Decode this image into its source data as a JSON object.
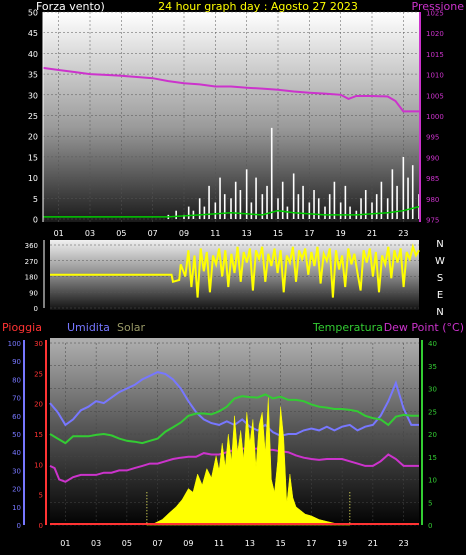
{
  "colors": {
    "wind": "#ffffff",
    "gust": "#00cc00",
    "pressure": "#cc33cc",
    "direction": "#ffff00",
    "rain": "#ff3333",
    "humidity": "#7777ff",
    "solar": "#ffff00",
    "temperature": "#33cc33",
    "dewpoint": "#cc33cc",
    "title": "#ffff00",
    "axis_text": "#ffffff"
  },
  "chart_data": [
    {
      "type": "line",
      "panel": "wind_pressure",
      "title": "24 hour graph day : Agosto 27 2023",
      "left_label": "Forza vento)",
      "right_label": "Pressione",
      "x_ticks": [
        "01",
        "03",
        "05",
        "07",
        "09",
        "11",
        "13",
        "15",
        "17",
        "19",
        "21",
        "23"
      ],
      "y_left_ticks": [
        0,
        5,
        10,
        15,
        20,
        25,
        30,
        35,
        40,
        45,
        50
      ],
      "y_right_ticks": [
        975,
        980,
        985,
        990,
        995,
        1000,
        1005,
        1010,
        1015,
        1020,
        1025
      ],
      "ylim_left": [
        0,
        50
      ],
      "ylim_right": [
        975,
        1025
      ],
      "grid": true,
      "series": [
        {
          "key": "pressure",
          "axis": "right",
          "x": [
            0,
            1,
            2,
            3,
            4,
            5,
            6,
            7,
            8,
            9,
            10,
            11,
            12,
            13,
            14,
            15,
            16,
            17,
            18,
            19,
            19.5,
            20,
            21,
            22,
            22.5,
            23,
            24
          ],
          "values": [
            1011.5,
            1011,
            1010.5,
            1010,
            1009.8,
            1009.6,
            1009.3,
            1009,
            1008.3,
            1007.8,
            1007.5,
            1007,
            1007,
            1006.7,
            1006.5,
            1006.2,
            1005.8,
            1005.5,
            1005.3,
            1005,
            1004,
            1004.7,
            1004.7,
            1004.6,
            1003.5,
            1001,
            1001
          ]
        },
        {
          "key": "wind",
          "axis": "left",
          "x": [
            8.0,
            8.5,
            9.0,
            9.3,
            9.6,
            10.0,
            10.3,
            10.6,
            11.0,
            11.3,
            11.6,
            12.0,
            12.3,
            12.6,
            13.0,
            13.3,
            13.6,
            14.0,
            14.3,
            14.6,
            15.0,
            15.3,
            15.6,
            16.0,
            16.3,
            16.6,
            17.0,
            17.3,
            17.6,
            18.0,
            18.3,
            18.6,
            19.0,
            19.3,
            19.6,
            20.0,
            20.3,
            20.6,
            21.0,
            21.3,
            21.6,
            22.0,
            22.3,
            22.6,
            23.0,
            23.3,
            23.6,
            24.0
          ],
          "values": [
            1,
            2,
            1,
            3,
            2,
            5,
            3,
            8,
            4,
            10,
            6,
            5,
            9,
            7,
            12,
            4,
            10,
            6,
            8,
            22,
            5,
            9,
            3,
            11,
            6,
            8,
            4,
            7,
            5,
            3,
            6,
            9,
            4,
            8,
            3,
            2,
            5,
            7,
            4,
            6,
            9,
            5,
            12,
            8,
            15,
            10,
            13,
            6
          ]
        },
        {
          "key": "gust",
          "axis": "left",
          "x": [
            0,
            8,
            10,
            12,
            14,
            15,
            16,
            18,
            20,
            22,
            23,
            24
          ],
          "values": [
            0.5,
            0.5,
            1,
            1.5,
            1,
            2,
            1.5,
            1,
            1,
            1.5,
            2,
            3
          ]
        }
      ]
    },
    {
      "type": "line",
      "panel": "wind_direction",
      "y_ticks": [
        0,
        90,
        180,
        270,
        360
      ],
      "ylim": [
        0,
        360
      ],
      "right_labels": [
        "N",
        "W",
        "S",
        "E",
        "N"
      ],
      "grid": true,
      "series": [
        {
          "key": "direction",
          "x": [
            0,
            7.9,
            8.0,
            8.4,
            8.5,
            8.8,
            9.0,
            9.2,
            9.4,
            9.6,
            9.8,
            10.0,
            10.2,
            10.4,
            10.6,
            10.8,
            11.0,
            11.2,
            11.4,
            11.6,
            11.8,
            12.0,
            12.2,
            12.4,
            12.6,
            12.8,
            13.0,
            13.2,
            13.4,
            13.6,
            13.8,
            14.0,
            14.2,
            14.4,
            14.6,
            14.8,
            15.0,
            15.2,
            15.4,
            15.6,
            15.8,
            16.0,
            16.2,
            16.4,
            16.6,
            16.8,
            17.0,
            17.2,
            17.4,
            17.6,
            17.8,
            18.0,
            18.2,
            18.4,
            18.6,
            18.8,
            19.0,
            19.2,
            19.4,
            19.6,
            19.8,
            20.0,
            20.2,
            20.4,
            20.6,
            20.8,
            21.0,
            21.2,
            21.4,
            21.6,
            21.8,
            22.0,
            22.2,
            22.4,
            22.6,
            22.8,
            23.0,
            23.2,
            23.4,
            23.6,
            23.8,
            24.0
          ],
          "values": [
            190,
            190,
            150,
            160,
            250,
            180,
            330,
            120,
            300,
            60,
            340,
            210,
            320,
            90,
            300,
            250,
            340,
            180,
            330,
            120,
            310,
            200,
            350,
            150,
            320,
            260,
            340,
            100,
            330,
            280,
            350,
            150,
            310,
            240,
            340,
            200,
            330,
            90,
            300,
            260,
            350,
            150,
            330,
            280,
            340,
            190,
            320,
            240,
            350,
            140,
            310,
            270,
            340,
            60,
            330,
            220,
            300,
            120,
            340,
            250,
            310,
            200,
            100,
            330,
            260,
            340,
            180,
            320,
            90,
            300,
            250,
            350,
            170,
            330,
            260,
            340,
            120,
            320,
            280,
            350,
            300,
            330
          ]
        }
      ]
    },
    {
      "type": "area",
      "panel": "humidity_temperature",
      "labels": {
        "rain": "Pioggia",
        "humidity": "Umidita",
        "solar": "Solar",
        "temperature": "Temperatura",
        "dewpoint": "Dew Point (°C)"
      },
      "x_ticks": [
        "01",
        "03",
        "05",
        "07",
        "09",
        "11",
        "13",
        "15",
        "17",
        "19",
        "21",
        "23"
      ],
      "y_humidity_ticks": [
        0,
        10,
        20,
        30,
        40,
        50,
        60,
        70,
        80,
        90,
        100
      ],
      "y_rain_ticks": [
        0,
        5,
        10,
        15,
        20,
        25,
        30
      ],
      "y_temp_ticks": [
        0,
        5,
        10,
        15,
        20,
        25,
        30,
        35,
        40
      ],
      "ylim_humidity": [
        0,
        100
      ],
      "ylim_rain": [
        0,
        30
      ],
      "ylim_temp": [
        0,
        40
      ],
      "grid": true,
      "series": [
        {
          "key": "humidity",
          "axis": "humidity",
          "x": [
            0,
            0.5,
            1,
            1.5,
            2,
            2.5,
            3,
            3.5,
            4,
            4.5,
            5,
            5.5,
            6,
            6.5,
            7,
            7.5,
            8,
            8.5,
            9,
            9.5,
            10,
            10.5,
            11,
            11.5,
            12,
            12.5,
            13,
            13.5,
            14,
            14.5,
            15,
            15.5,
            16,
            16.5,
            17,
            17.5,
            18,
            18.5,
            19,
            19.5,
            20,
            20.5,
            21,
            21.5,
            22,
            22.5,
            23,
            23.5,
            24
          ],
          "values": [
            67,
            62,
            55,
            58,
            63,
            65,
            68,
            67,
            70,
            73,
            75,
            77,
            80,
            82,
            84,
            83,
            80,
            75,
            68,
            62,
            58,
            56,
            55,
            57,
            55,
            58,
            54,
            52,
            55,
            51,
            49,
            50,
            50,
            52,
            53,
            52,
            54,
            52,
            54,
            55,
            52,
            54,
            55,
            60,
            68,
            78,
            64,
            55,
            55
          ]
        },
        {
          "key": "temperature",
          "axis": "temp",
          "x": [
            0,
            0.5,
            1,
            1.5,
            2,
            2.5,
            3,
            3.5,
            4,
            4.5,
            5,
            5.5,
            6,
            6.5,
            7,
            7.5,
            8,
            8.5,
            9,
            9.5,
            10,
            10.5,
            11,
            11.5,
            12,
            12.5,
            13,
            13.5,
            14,
            14.5,
            15,
            15.5,
            16,
            16.5,
            17,
            17.5,
            18,
            18.5,
            19,
            19.5,
            20,
            20.5,
            21,
            21.5,
            22,
            22.5,
            23,
            23.5,
            24
          ],
          "values": [
            20,
            19,
            18,
            19.5,
            19.5,
            19.5,
            19.8,
            20,
            19.7,
            19,
            18.5,
            18.3,
            18,
            18.5,
            19,
            20.5,
            21.5,
            22.5,
            24,
            24.5,
            24.5,
            24.3,
            25,
            26,
            27.8,
            28.3,
            28.1,
            28,
            28.7,
            27.8,
            28.2,
            27.5,
            27.5,
            27.2,
            26.5,
            26,
            25.8,
            25.5,
            25.5,
            25.3,
            25,
            24,
            23.5,
            23.2,
            22,
            23.8,
            24.2,
            24,
            24
          ]
        },
        {
          "key": "dewpoint",
          "axis": "temp",
          "x": [
            0,
            0.3,
            0.6,
            1,
            1.5,
            2,
            2.5,
            3,
            3.5,
            4,
            4.5,
            5,
            5.5,
            6,
            6.5,
            7,
            7.5,
            8,
            8.5,
            9,
            9.5,
            10,
            10.5,
            11,
            11.5,
            12,
            12.5,
            13,
            13.5,
            14,
            14.5,
            15,
            15.5,
            16,
            16.5,
            17,
            17.5,
            18,
            18.5,
            19,
            19.5,
            20,
            20.5,
            21,
            21.5,
            22,
            22.5,
            23,
            23.5,
            24
          ],
          "values": [
            13,
            12.5,
            10,
            9.5,
            10.5,
            11,
            11,
            11,
            11.5,
            11.5,
            12,
            12,
            12.5,
            13,
            13.5,
            13.5,
            14,
            14.5,
            14.8,
            15,
            15,
            15.8,
            15.5,
            15.5,
            16,
            16.5,
            16.8,
            16.8,
            16.8,
            16.5,
            16.5,
            16.2,
            16,
            15.3,
            14.8,
            14.5,
            14.3,
            14.5,
            14.5,
            14.5,
            14,
            13.5,
            13,
            13,
            14,
            15.5,
            14.5,
            13,
            13,
            13
          ]
        },
        {
          "key": "solar",
          "axis": "humidity",
          "x": [
            6.3,
            6.8,
            7.3,
            7.8,
            8.2,
            8.6,
            9.0,
            9.3,
            9.6,
            9.9,
            10.2,
            10.5,
            10.8,
            11.0,
            11.2,
            11.4,
            11.6,
            11.8,
            12.0,
            12.2,
            12.4,
            12.6,
            12.8,
            13.0,
            13.2,
            13.4,
            13.6,
            13.8,
            14.0,
            14.2,
            14.4,
            14.6,
            14.8,
            15.0,
            15.2,
            15.4,
            15.6,
            15.8,
            16.0,
            16.3,
            16.6,
            17.0,
            17.5,
            18.0,
            18.5,
            19.0,
            19.5
          ],
          "values": [
            0,
            1,
            3,
            7,
            10,
            14,
            20,
            18,
            28,
            22,
            31,
            26,
            38,
            30,
            45,
            32,
            50,
            35,
            60,
            40,
            52,
            36,
            62,
            45,
            58,
            32,
            55,
            62,
            40,
            70,
            25,
            18,
            35,
            65,
            48,
            12,
            28,
            15,
            10,
            8,
            6,
            5,
            3,
            2,
            1,
            0.5,
            0
          ]
        },
        {
          "key": "rain",
          "axis": "rain",
          "x": [
            0,
            24
          ],
          "values": [
            0,
            0
          ]
        }
      ]
    }
  ]
}
